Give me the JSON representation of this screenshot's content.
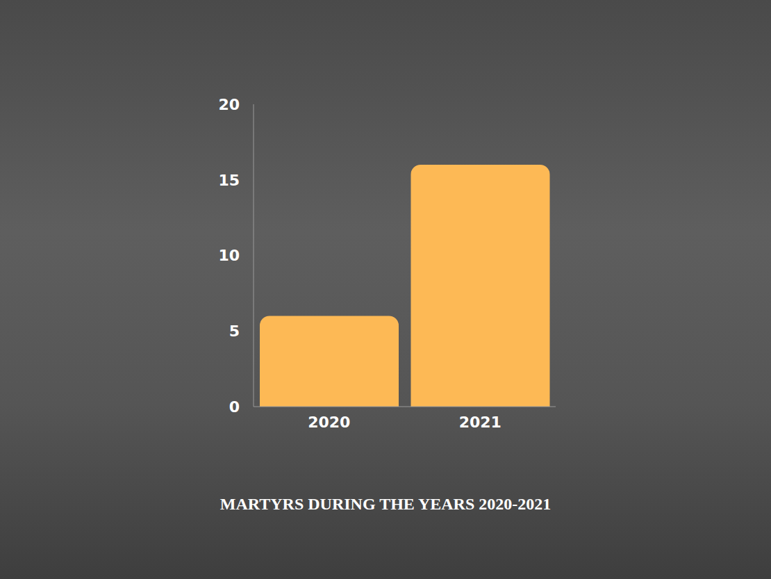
{
  "chart_data": {
    "type": "bar",
    "title": "MARTYRS DURING THE YEARS 2020-2021",
    "categories": [
      "2020",
      "2021"
    ],
    "values": [
      6,
      16
    ],
    "color": "#fdb955",
    "ylim": [
      0,
      20
    ],
    "yticks": [
      0,
      5,
      10,
      15,
      20
    ],
    "grid": false
  }
}
